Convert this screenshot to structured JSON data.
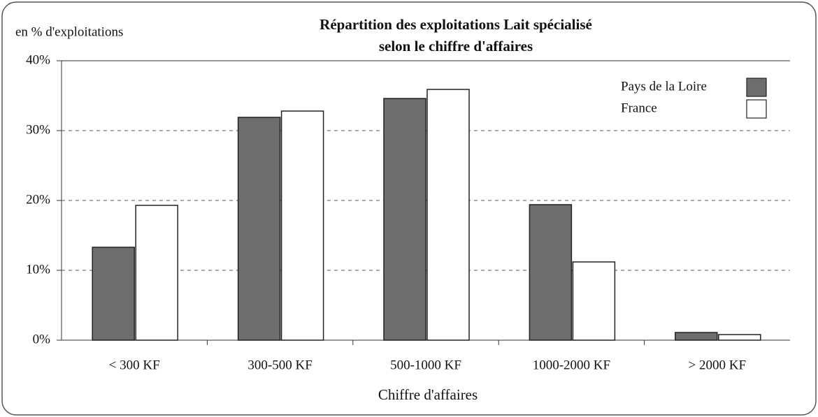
{
  "chart_data": {
    "type": "bar",
    "title": [
      "Répartition des exploitations Lait spécialisé",
      "selon le chiffre d'affaires"
    ],
    "y_label": "en % d'exploitations",
    "x_label": "Chiffre d'affaires",
    "categories": [
      "< 300 KF",
      "300-500 KF",
      "500-1000 KF",
      "1000-2000 KF",
      "> 2000 KF"
    ],
    "series": [
      {
        "name": "Pays de la Loire",
        "color": "#6e6e6e",
        "values": [
          13.3,
          31.9,
          34.6,
          19.4,
          1.1
        ]
      },
      {
        "name": "France",
        "color": "#ffffff",
        "values": [
          19.3,
          32.8,
          35.9,
          11.2,
          0.8
        ]
      }
    ],
    "ylim": [
      0,
      40
    ],
    "yticks": [
      {
        "value": 0,
        "label": "0%"
      },
      {
        "value": 10,
        "label": "10%"
      },
      {
        "value": 20,
        "label": "20%"
      },
      {
        "value": 30,
        "label": "30%"
      },
      {
        "value": 40,
        "label": "40%"
      }
    ],
    "grid": true,
    "legend": "top-right"
  }
}
